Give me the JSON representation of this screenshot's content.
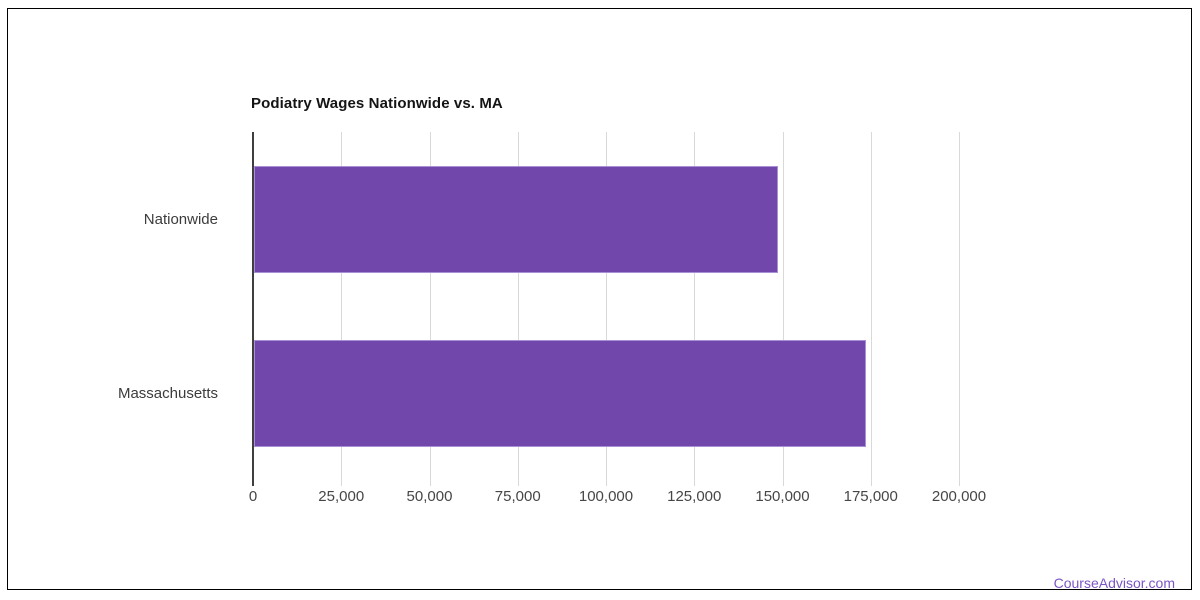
{
  "page": {
    "frame_border_color": "#000000",
    "background_color": "#ffffff",
    "watermark": {
      "label": "CourseAdvisor.com",
      "color": "#7b55c6"
    }
  },
  "chart_data": {
    "type": "bar",
    "orientation": "horizontal",
    "title": "Podiatry Wages Nationwide vs. MA",
    "categories": [
      "Nationwide",
      "Massachusetts"
    ],
    "values": [
      148500,
      173300
    ],
    "xlabel": "",
    "ylabel": "",
    "xlim": [
      0,
      200000
    ],
    "xticks": [
      0,
      25000,
      50000,
      75000,
      100000,
      125000,
      150000,
      175000,
      200000
    ],
    "xtick_labels": [
      "0",
      "25,000",
      "50,000",
      "75,000",
      "100,000",
      "125,000",
      "150,000",
      "175,000",
      "200,000"
    ],
    "grid": true,
    "legend": false,
    "bar_color": "#7247ac",
    "bar_border_color": "#a98fd4",
    "gridline_color": "#d9d9d9",
    "axis_line_color": "#3f3f3f",
    "title_color": "#141414",
    "tick_label_color": "#464646",
    "category_label_color": "#3c3c3c"
  }
}
